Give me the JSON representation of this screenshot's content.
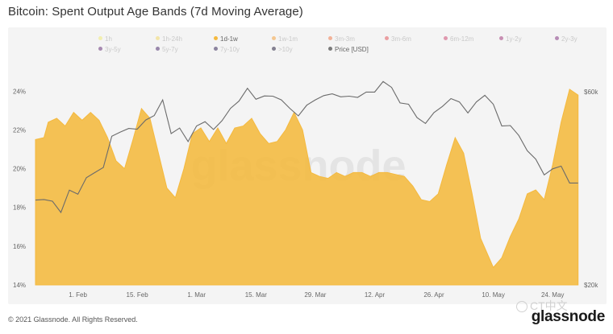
{
  "header": {
    "title": "Bitcoin: Spent Output Age Bands (7d Moving Average)"
  },
  "legend": {
    "rows": [
      [
        {
          "label": "1h",
          "color": "#f0e96a",
          "active": false
        },
        {
          "label": "1h-24h",
          "color": "#f2d55b",
          "active": false
        },
        {
          "label": "1d-1w",
          "color": "#f4b93e",
          "active": true
        },
        {
          "label": "1w-1m",
          "color": "#f39a2c",
          "active": false
        },
        {
          "label": "3m-3m",
          "color": "#ef6f3c",
          "active": false
        },
        {
          "label": "3m-6m",
          "color": "#e0484d",
          "active": false
        },
        {
          "label": "6m-12m",
          "color": "#c93b67",
          "active": false
        },
        {
          "label": "1y-2y",
          "color": "#9c2a72",
          "active": false
        },
        {
          "label": "2y-3y",
          "color": "#7a2377",
          "active": false
        }
      ],
      [
        {
          "label": "3y-5y",
          "color": "#5a1f6e",
          "active": false
        },
        {
          "label": "5y-7y",
          "color": "#3e1a62",
          "active": false
        },
        {
          "label": "7y-10y",
          "color": "#241449",
          "active": false
        },
        {
          "label": ">10y",
          "color": "#120b2b",
          "active": false
        },
        {
          "label": "Price [USD]",
          "color": "#7a7a7a",
          "active": true
        }
      ]
    ]
  },
  "watermark": {
    "text": "glassnode"
  },
  "footer": {
    "copyright": "© 2021 Glassnode. All Rights Reserved.",
    "brand": "glassnode",
    "repost_mark": "CT中文"
  },
  "chart_data": {
    "type": "area",
    "title": "Bitcoin: Spent Output Age Bands (7d Moving Average)",
    "x_labels": [
      "1. Feb",
      "15. Feb",
      "1. Mar",
      "15. Mar",
      "29. Mar",
      "12. Apr",
      "26. Apr",
      "10. May",
      "24. May"
    ],
    "y_left": {
      "ticks": [
        "14%",
        "16%",
        "18%",
        "20%",
        "22%",
        "24%"
      ],
      "min": 14,
      "max": 24.8
    },
    "y_right": {
      "ticks": [
        "$20k",
        "$60k"
      ],
      "min": 20000,
      "max": 60000,
      "scale": "log"
    },
    "grid": false,
    "series": [
      {
        "name": "1d-1w",
        "color": "#f4b93e",
        "axis": "left",
        "points": [
          [
            "2021-01-22",
            21.5
          ],
          [
            "2021-01-24",
            21.6
          ],
          [
            "2021-01-25",
            22.4
          ],
          [
            "2021-01-27",
            22.6
          ],
          [
            "2021-01-29",
            22.2
          ],
          [
            "2021-01-31",
            22.9
          ],
          [
            "2021-02-02",
            22.5
          ],
          [
            "2021-02-04",
            22.9
          ],
          [
            "2021-02-06",
            22.5
          ],
          [
            "2021-02-08",
            21.6
          ],
          [
            "2021-02-10",
            20.4
          ],
          [
            "2021-02-12",
            20.0
          ],
          [
            "2021-02-14",
            21.5
          ],
          [
            "2021-02-16",
            23.1
          ],
          [
            "2021-02-18",
            22.6
          ],
          [
            "2021-02-20",
            20.8
          ],
          [
            "2021-02-22",
            19.0
          ],
          [
            "2021-02-24",
            18.5
          ],
          [
            "2021-02-26",
            20.0
          ],
          [
            "2021-02-28",
            21.8
          ],
          [
            "2021-03-02",
            22.1
          ],
          [
            "2021-03-04",
            21.4
          ],
          [
            "2021-03-06",
            22.1
          ],
          [
            "2021-03-08",
            21.3
          ],
          [
            "2021-03-10",
            22.1
          ],
          [
            "2021-03-12",
            22.2
          ],
          [
            "2021-03-14",
            22.6
          ],
          [
            "2021-03-16",
            21.8
          ],
          [
            "2021-03-18",
            21.3
          ],
          [
            "2021-03-20",
            21.4
          ],
          [
            "2021-03-22",
            22.0
          ],
          [
            "2021-03-24",
            22.9
          ],
          [
            "2021-03-26",
            22.0
          ],
          [
            "2021-03-28",
            19.8
          ],
          [
            "2021-03-30",
            19.6
          ],
          [
            "2021-04-01",
            19.5
          ],
          [
            "2021-04-03",
            19.8
          ],
          [
            "2021-04-05",
            19.6
          ],
          [
            "2021-04-07",
            19.8
          ],
          [
            "2021-04-09",
            19.8
          ],
          [
            "2021-04-11",
            19.6
          ],
          [
            "2021-04-13",
            19.8
          ],
          [
            "2021-04-15",
            19.8
          ],
          [
            "2021-04-17",
            19.7
          ],
          [
            "2021-04-19",
            19.6
          ],
          [
            "2021-04-21",
            19.1
          ],
          [
            "2021-04-23",
            18.4
          ],
          [
            "2021-04-25",
            18.3
          ],
          [
            "2021-04-27",
            18.7
          ],
          [
            "2021-04-29",
            20.2
          ],
          [
            "2021-05-01",
            21.6
          ],
          [
            "2021-05-03",
            20.8
          ],
          [
            "2021-05-05",
            18.7
          ],
          [
            "2021-05-07",
            16.4
          ],
          [
            "2021-05-09",
            15.4
          ],
          [
            "2021-05-10",
            14.9
          ],
          [
            "2021-05-12",
            15.4
          ],
          [
            "2021-05-14",
            16.5
          ],
          [
            "2021-05-16",
            17.4
          ],
          [
            "2021-05-18",
            18.7
          ],
          [
            "2021-05-20",
            18.9
          ],
          [
            "2021-05-22",
            18.4
          ],
          [
            "2021-05-24",
            20.2
          ],
          [
            "2021-05-26",
            22.4
          ],
          [
            "2021-05-28",
            24.1
          ],
          [
            "2021-05-30",
            23.8
          ]
        ]
      },
      {
        "name": "Price [USD]",
        "color": "#6b6b6b",
        "axis": "right",
        "points": [
          [
            "2021-01-22",
            32400
          ],
          [
            "2021-01-24",
            32500
          ],
          [
            "2021-01-26",
            32200
          ],
          [
            "2021-01-28",
            30200
          ],
          [
            "2021-01-30",
            34300
          ],
          [
            "2021-02-01",
            33500
          ],
          [
            "2021-02-03",
            36800
          ],
          [
            "2021-02-05",
            37900
          ],
          [
            "2021-02-07",
            39000
          ],
          [
            "2021-02-09",
            46600
          ],
          [
            "2021-02-11",
            47700
          ],
          [
            "2021-02-13",
            48700
          ],
          [
            "2021-02-15",
            48500
          ],
          [
            "2021-02-17",
            51100
          ],
          [
            "2021-02-19",
            52400
          ],
          [
            "2021-02-21",
            57300
          ],
          [
            "2021-02-23",
            47300
          ],
          [
            "2021-02-25",
            48800
          ],
          [
            "2021-02-27",
            45200
          ],
          [
            "2021-03-01",
            49400
          ],
          [
            "2021-03-03",
            50600
          ],
          [
            "2021-03-05",
            48400
          ],
          [
            "2021-03-07",
            50900
          ],
          [
            "2021-03-09",
            54600
          ],
          [
            "2021-03-11",
            56900
          ],
          [
            "2021-03-13",
            61200
          ],
          [
            "2021-03-15",
            57500
          ],
          [
            "2021-03-17",
            58600
          ],
          [
            "2021-03-19",
            58500
          ],
          [
            "2021-03-21",
            57300
          ],
          [
            "2021-03-23",
            54600
          ],
          [
            "2021-03-25",
            52300
          ],
          [
            "2021-03-27",
            55600
          ],
          [
            "2021-03-29",
            57300
          ],
          [
            "2021-03-31",
            58700
          ],
          [
            "2021-04-02",
            59300
          ],
          [
            "2021-04-04",
            58300
          ],
          [
            "2021-04-06",
            58500
          ],
          [
            "2021-04-08",
            58100
          ],
          [
            "2021-04-10",
            59900
          ],
          [
            "2021-04-12",
            59900
          ],
          [
            "2021-04-14",
            63600
          ],
          [
            "2021-04-16",
            61500
          ],
          [
            "2021-04-18",
            56300
          ],
          [
            "2021-04-20",
            55900
          ],
          [
            "2021-04-22",
            51800
          ],
          [
            "2021-04-24",
            50100
          ],
          [
            "2021-04-26",
            53300
          ],
          [
            "2021-04-28",
            55200
          ],
          [
            "2021-04-30",
            57700
          ],
          [
            "2021-05-02",
            56600
          ],
          [
            "2021-05-04",
            53200
          ],
          [
            "2021-05-06",
            56600
          ],
          [
            "2021-05-08",
            58800
          ],
          [
            "2021-05-10",
            55900
          ],
          [
            "2021-05-12",
            49400
          ],
          [
            "2021-05-14",
            49500
          ],
          [
            "2021-05-16",
            46800
          ],
          [
            "2021-05-18",
            42900
          ],
          [
            "2021-05-20",
            40900
          ],
          [
            "2021-05-22",
            37400
          ],
          [
            "2021-05-24",
            38700
          ],
          [
            "2021-05-26",
            39300
          ],
          [
            "2021-05-28",
            35700
          ],
          [
            "2021-05-30",
            35700
          ]
        ]
      }
    ]
  }
}
